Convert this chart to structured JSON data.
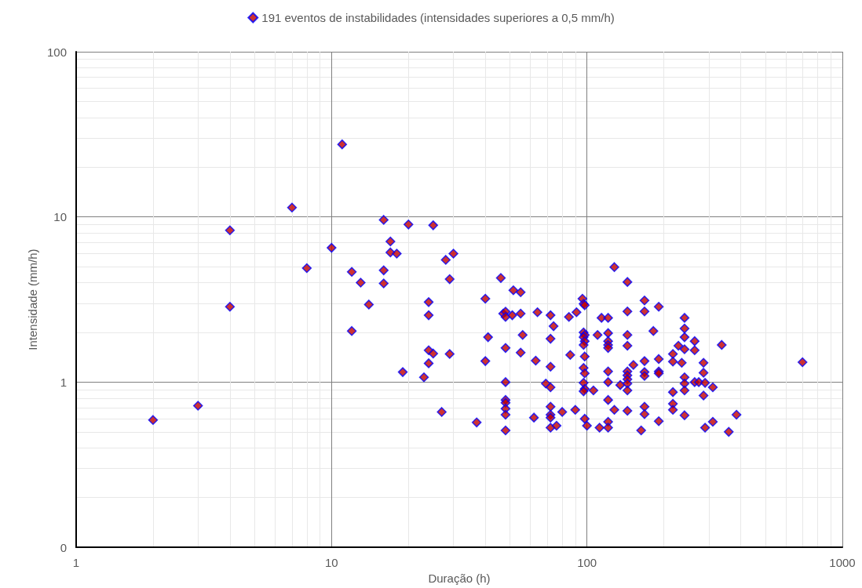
{
  "chart_data": {
    "type": "scatter",
    "xlabel": "Duração (h)",
    "ylabel": "Intensidade (mm/h)",
    "log": "xy",
    "grid": true,
    "legend": "top",
    "marker": "diamond",
    "xlim": [
      1,
      1000
    ],
    "xticks": [
      1,
      10,
      100,
      1000
    ],
    "ylim": [
      0.1,
      100
    ],
    "yticks": [
      {
        "value": 0.1,
        "label": "0"
      },
      1,
      10,
      100
    ],
    "series": [
      {
        "name": "191 eventos de instabilidades (intensidades superiores a 0,5 mm/h)",
        "color": "#c00000",
        "x": [
          2,
          3,
          4,
          4,
          7,
          8,
          10,
          11,
          12,
          12,
          13,
          14,
          16,
          16,
          16,
          17,
          17,
          18,
          19,
          20,
          28,
          30,
          29,
          24,
          24,
          24,
          25,
          24,
          29,
          23,
          27,
          37,
          25,
          46,
          51.5,
          55,
          40,
          47,
          48,
          48,
          51,
          55,
          64,
          72,
          74,
          85,
          91,
          96,
          97,
          98,
          41,
          56,
          72,
          48,
          55,
          40,
          63,
          72,
          86,
          48,
          69,
          72,
          48,
          48,
          48,
          48,
          48,
          62,
          72,
          72,
          72,
          80,
          90,
          72,
          76,
          97,
          98,
          97,
          98,
          97,
          98,
          97,
          98,
          97,
          98,
          97,
          98,
          100,
          128,
          144,
          168,
          191,
          144,
          168,
          114,
          121,
          241,
          241,
          182,
          110,
          121,
          144,
          241,
          264,
          121,
          121,
          121,
          144,
          228,
          241,
          264,
          337,
          217,
          152,
          168,
          191,
          217,
          235,
          286,
          144,
          144,
          144,
          168,
          168,
          191,
          191,
          121,
          121,
          135,
          144,
          144,
          106,
          241,
          241,
          241,
          286,
          264,
          274,
          290,
          311,
          286,
          217,
          121,
          217,
          217,
          128,
          144,
          168,
          168,
          241,
          191,
          121,
          121,
          112,
          163,
          290,
          311,
          359,
          385,
          698
        ],
        "values": [
          0.59,
          0.72,
          8.3,
          2.86,
          11.4,
          4.9,
          6.5,
          27.5,
          4.65,
          2.04,
          4,
          2.95,
          9.6,
          4.75,
          3.96,
          7.1,
          6.1,
          6,
          1.15,
          9,
          5.5,
          6,
          4.2,
          3.05,
          2.54,
          1.56,
          1.49,
          1.3,
          1.48,
          1.07,
          0.66,
          0.57,
          8.9,
          4.27,
          3.6,
          3.5,
          3.2,
          2.6,
          2.67,
          2.48,
          2.54,
          2.6,
          2.65,
          2.54,
          2.18,
          2.48,
          2.65,
          3.2,
          2.98,
          2.92,
          1.87,
          1.93,
          1.83,
          1.61,
          1.51,
          1.34,
          1.35,
          1.24,
          1.46,
          1,
          0.98,
          0.93,
          0.78,
          0.75,
          0.69,
          0.635,
          0.51,
          0.61,
          0.71,
          0.635,
          0.61,
          0.66,
          0.68,
          0.53,
          0.545,
          2,
          1.93,
          1.87,
          1.77,
          1.68,
          1.43,
          1.22,
          1.13,
          0.99,
          0.91,
          0.88,
          0.6,
          0.545,
          4.97,
          4.04,
          3.12,
          2.86,
          2.68,
          2.68,
          2.45,
          2.45,
          2.45,
          2.11,
          2.04,
          1.93,
          1.98,
          1.93,
          1.87,
          1.77,
          1.77,
          1.68,
          1.61,
          1.66,
          1.66,
          1.58,
          1.56,
          1.68,
          1.48,
          1.27,
          1.34,
          1.38,
          1.33,
          1.31,
          1.31,
          1.16,
          1.1,
          1.04,
          1.15,
          1.09,
          1.16,
          1.13,
          1.16,
          1,
          0.96,
          0.98,
          0.89,
          0.89,
          1.07,
          0.98,
          0.89,
          1.14,
          1,
          1,
          0.99,
          0.93,
          0.83,
          0.87,
          0.78,
          0.74,
          0.68,
          0.68,
          0.67,
          0.71,
          0.64,
          0.63,
          0.58,
          0.575,
          0.53,
          0.53,
          0.51,
          0.53,
          0.575,
          0.5,
          0.635,
          1.32
        ]
      }
    ]
  }
}
